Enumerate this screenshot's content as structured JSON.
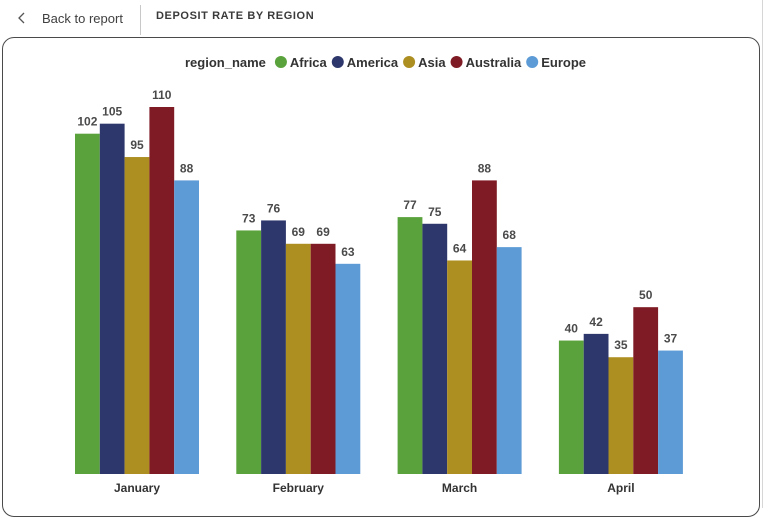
{
  "header": {
    "back_label": "Back to report",
    "page_title": "DEPOSIT RATE BY REGION"
  },
  "chart_data": {
    "type": "bar",
    "legend_title": "region_name",
    "legend_position": "top-center",
    "grid": false,
    "categories": [
      "January",
      "February",
      "March",
      "April"
    ],
    "series": [
      {
        "name": "Africa",
        "color": "#5aa33c",
        "values": [
          102,
          73,
          77,
          40
        ]
      },
      {
        "name": "America",
        "color": "#2d376b",
        "values": [
          105,
          76,
          75,
          42
        ]
      },
      {
        "name": "Asia",
        "color": "#ad8e21",
        "values": [
          95,
          69,
          64,
          35
        ]
      },
      {
        "name": "Australia",
        "color": "#7f1b24",
        "values": [
          110,
          69,
          88,
          50
        ]
      },
      {
        "name": "Europe",
        "color": "#5d9bd6",
        "values": [
          88,
          63,
          68,
          37
        ]
      }
    ],
    "ylim": [
      0,
      110
    ]
  }
}
